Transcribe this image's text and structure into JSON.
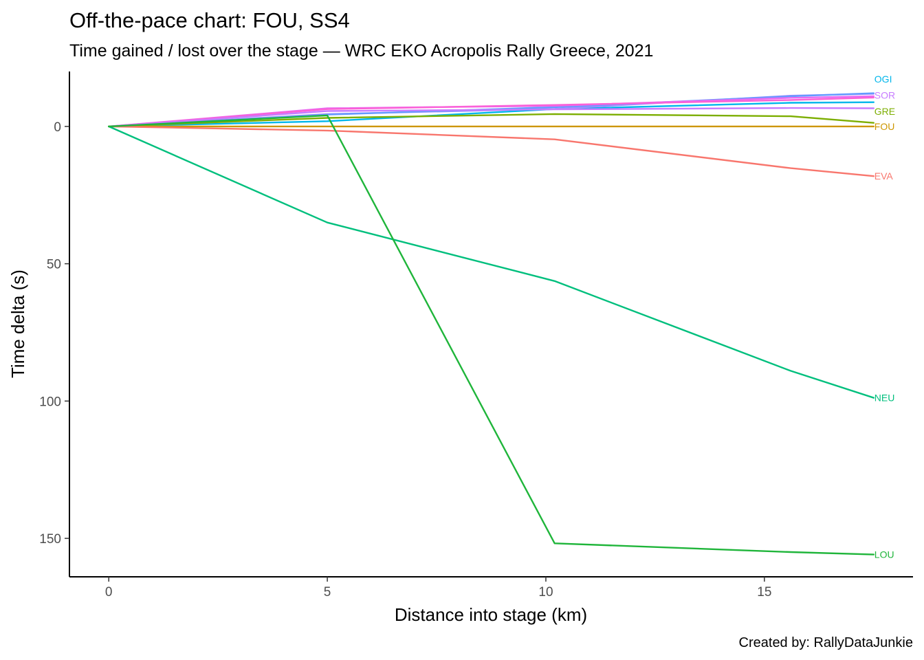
{
  "chart_data": {
    "type": "line",
    "title": "Off-the-pace chart: FOU, SS4",
    "subtitle": "Time gained / lost over the stage — WRC EKO Acropolis Rally Greece, 2021",
    "xlabel": "Distance into stage (km)",
    "ylabel": "Time delta (s)",
    "caption": "Created by: RallyDataJunkie",
    "xlim": [
      -0.9,
      18.4
    ],
    "ylim": [
      -20,
      164
    ],
    "y_reversed": true,
    "x_ticks": [
      0,
      5,
      10,
      15
    ],
    "y_ticks": [
      0,
      50,
      100,
      150
    ],
    "grid": false,
    "legend": "none; series labelled at line ends",
    "series": [
      {
        "name": "OGI",
        "color": "#00B6EB",
        "x": [
          0,
          5.0,
          10.2,
          15.6,
          17.5
        ],
        "y": [
          0,
          -1.9,
          -6.3,
          -8.6,
          -8.8
        ]
      },
      {
        "name": "SOR",
        "color": "#A58AFF",
        "x": [
          0,
          5.0,
          10.2,
          15.6,
          17.5
        ],
        "y": [
          0,
          -4.5,
          -6.4,
          -11.2,
          -11.9
        ]
      },
      {
        "name": "SOR",
        "color": "#639BFF",
        "x": [
          0,
          5.0,
          10.2,
          15.6,
          17.5
        ],
        "y": [
          0,
          -4.3,
          -7.0,
          -11.0,
          -12.1
        ]
      },
      {
        "name": "",
        "color": "#E76BF3",
        "x": [
          0,
          5.0,
          10.2,
          15.6,
          17.5
        ],
        "y": [
          0,
          -6.6,
          -7.5,
          -10.4,
          -11.0
        ]
      },
      {
        "name": "",
        "color": "#FB61D7",
        "x": [
          0,
          5.0,
          10.2,
          15.6,
          17.5
        ],
        "y": [
          0,
          -6.3,
          -7.8,
          -9.6,
          -10.5
        ]
      },
      {
        "name": "SOR",
        "color": "#C77CFF",
        "x": [
          0,
          5.0,
          10.2,
          15.6,
          17.5
        ],
        "y": [
          0,
          -5.6,
          -6.2,
          -6.7,
          -6.6
        ]
      },
      {
        "name": "GRE",
        "color": "#7CAE00",
        "x": [
          0,
          5.0,
          10.2,
          15.6,
          17.5
        ],
        "y": [
          0,
          -3.1,
          -4.5,
          -3.7,
          -1.3
        ]
      },
      {
        "name": "FOU",
        "color": "#CD9600",
        "x": [
          0,
          5.0,
          10.2,
          15.6,
          17.5
        ],
        "y": [
          0,
          0,
          0,
          0,
          0
        ]
      },
      {
        "name": "EVA",
        "color": "#F8766D",
        "x": [
          0,
          5.0,
          10.2,
          15.6,
          17.5
        ],
        "y": [
          0,
          1.5,
          4.7,
          15.2,
          18.1
        ]
      },
      {
        "name": "NEU",
        "color": "#00BF7D",
        "x": [
          0,
          5.0,
          10.2,
          15.6,
          17.5
        ],
        "y": [
          0,
          35.0,
          56.3,
          89.0,
          98.8
        ]
      },
      {
        "name": "LOU",
        "color": "#1FB53A",
        "x": [
          0,
          5.0,
          10.2,
          15.6,
          17.5
        ],
        "y": [
          0,
          -4.0,
          151.8,
          155.0,
          155.9
        ]
      }
    ],
    "end_labels": [
      {
        "text": "OGI",
        "color": "#00B6EB",
        "x": 17.5,
        "y": -17.2
      },
      {
        "text": "SOR",
        "color": "#C77CFF",
        "x": 17.5,
        "y": -11.4
      },
      {
        "text": "GRE",
        "color": "#7CAE00",
        "x": 17.5,
        "y": -5.5
      },
      {
        "text": "FOU",
        "color": "#CD9600",
        "x": 17.5,
        "y": 0
      },
      {
        "text": "EVA",
        "color": "#F8766D",
        "x": 17.5,
        "y": 18.1
      },
      {
        "text": "NEU",
        "color": "#00BF7D",
        "x": 17.5,
        "y": 98.8
      },
      {
        "text": "LOU",
        "color": "#1FB53A",
        "x": 17.5,
        "y": 155.9
      }
    ]
  }
}
